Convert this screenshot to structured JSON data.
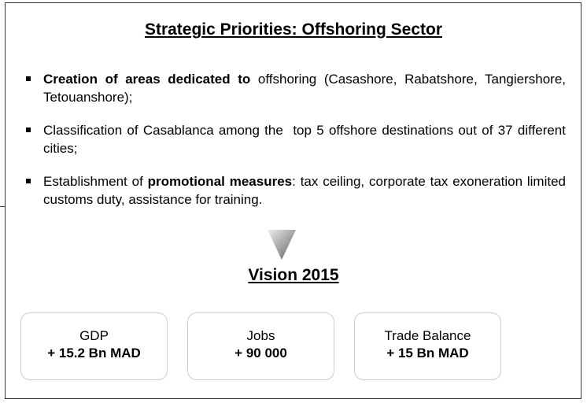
{
  "title": "Strategic Priorities: Offshoring Sector",
  "bullets": [
    [
      {
        "text": "Creation of areas dedicated to",
        "bold": true
      },
      {
        "text": " offshoring (Casashore, Rabatshore, Tangiershore, Tetouanshore);",
        "bold": false
      }
    ],
    [
      {
        "text": "Classification of Casablanca among the  top 5 offshore destinations out of 37 different cities;",
        "bold": false
      }
    ],
    [
      {
        "text": "Establishment of ",
        "bold": false
      },
      {
        "text": "promotional measures",
        "bold": true
      },
      {
        "text": ": tax ceiling, corporate tax exoneration limited customs duty, assistance for training.",
        "bold": false
      }
    ]
  ],
  "vision": {
    "title": "Vision 2015",
    "boxes": [
      {
        "label": "GDP",
        "value": "+ 15.2 Bn MAD"
      },
      {
        "label": "Jobs",
        "value": "+ 90 000"
      },
      {
        "label": "Trade Balance",
        "value": "+ 15 Bn MAD"
      }
    ]
  }
}
